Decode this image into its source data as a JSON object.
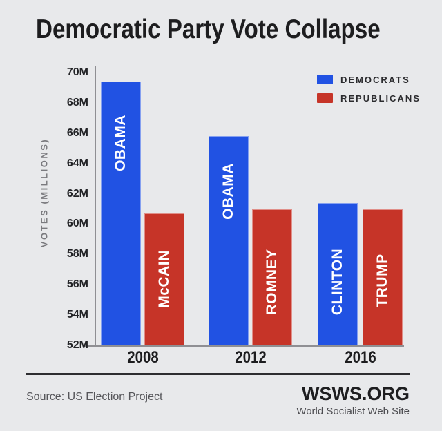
{
  "title": "Democratic Party Vote Collapse",
  "chart_data": {
    "type": "bar",
    "title": "Democratic Party Vote Collapse",
    "categories": [
      "2008",
      "2012",
      "2016"
    ],
    "series": [
      {
        "name": "DEMOCRATS",
        "color": "#2152e3",
        "values": [
          69.4,
          65.8,
          61.4
        ],
        "bar_labels": [
          "OBAMA",
          "OBAMA",
          "CLINTON"
        ],
        "label_y_frac": [
          0.23,
          0.26,
          0.55
        ]
      },
      {
        "name": "REPUBLICANS",
        "color": "#c63428",
        "values": [
          60.7,
          61.0,
          61.0
        ],
        "bar_labels": [
          "McCAIN",
          "ROMNEY",
          "TRUMP"
        ],
        "label_y_frac": [
          0.49,
          0.53,
          0.52
        ]
      }
    ],
    "xlabel": "",
    "ylabel": "VOTES (MILLIONS)",
    "ylim": [
      52,
      70
    ],
    "ytick_step": 2,
    "ytick_labels": [
      "52M",
      "54M",
      "56M",
      "58M",
      "60M",
      "62M",
      "64M",
      "66M",
      "68M",
      "70M"
    ],
    "grid": false,
    "legend_position": "top-right",
    "bar_label_color": "#ffffff"
  },
  "footer": {
    "source": "Source: US Election Project",
    "brand": "WSWS.ORG",
    "tagline": "World Socialist Web Site"
  }
}
